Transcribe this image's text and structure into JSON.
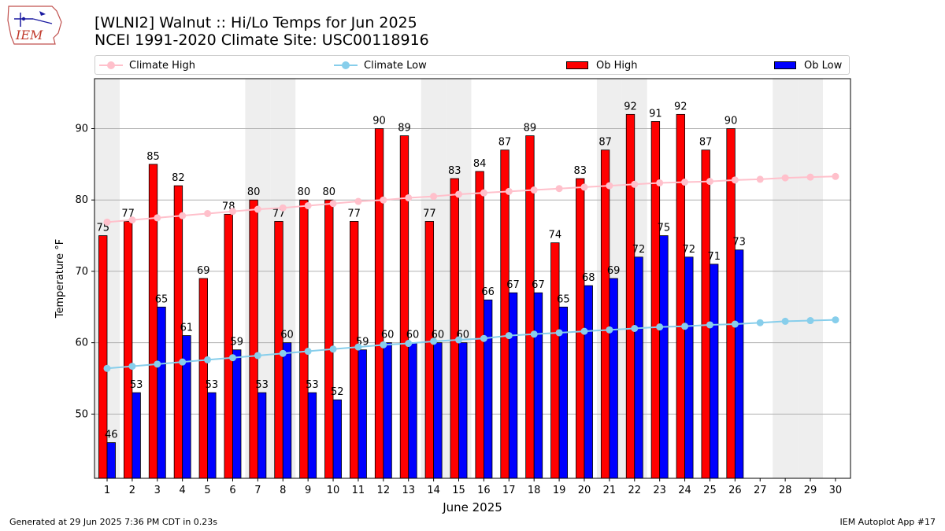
{
  "title_line1": "[WLNI2] Walnut :: Hi/Lo Temps for Jun 2025",
  "title_line2": "NCEI 1991-2020 Climate Site: USC00118916",
  "footer_left": "Generated at 29 Jun 2025 7:36 PM CDT in 0.23s",
  "footer_right": "IEM Autoplot App #17",
  "logo_text": "IEM",
  "legend": {
    "climate_high": "Climate High",
    "climate_low": "Climate Low",
    "ob_high": "Ob High",
    "ob_low": "Ob Low"
  },
  "colors": {
    "ob_high": "#ff0000",
    "ob_low": "#0000ff",
    "climate_high": "#ffc0cb",
    "climate_low": "#87ceeb",
    "weekend_shade": "#eeeeee",
    "grid": "#b0b0b0"
  },
  "chart_data": {
    "type": "bar",
    "xlabel": "June 2025",
    "ylabel": "Temperature °F",
    "ylim": [
      41,
      97
    ],
    "yticks": [
      50,
      60,
      70,
      80,
      90
    ],
    "grid": "horizontal",
    "legend_placement": "top",
    "categories": [
      "1",
      "2",
      "3",
      "4",
      "5",
      "6",
      "7",
      "8",
      "9",
      "10",
      "11",
      "12",
      "13",
      "14",
      "15",
      "16",
      "17",
      "18",
      "19",
      "20",
      "21",
      "22",
      "23",
      "24",
      "25",
      "26",
      "27",
      "28",
      "29",
      "30"
    ],
    "weekend_days": [
      1,
      7,
      8,
      14,
      15,
      21,
      22,
      28,
      29
    ],
    "series": [
      {
        "name": "Ob High",
        "kind": "bar",
        "values": [
          75,
          77,
          85,
          82,
          69,
          78,
          80,
          77,
          80,
          80,
          77,
          90,
          89,
          77,
          83,
          84,
          87,
          89,
          74,
          83,
          87,
          92,
          91,
          92,
          87,
          90,
          null,
          null,
          null,
          null
        ]
      },
      {
        "name": "Ob Low",
        "kind": "bar",
        "values": [
          46,
          53,
          65,
          61,
          53,
          59,
          53,
          60,
          53,
          52,
          59,
          60,
          60,
          60,
          60,
          66,
          67,
          67,
          65,
          68,
          69,
          72,
          75,
          72,
          71,
          73,
          null,
          null,
          null,
          null
        ]
      },
      {
        "name": "Climate High",
        "kind": "line",
        "values": [
          76.9,
          77.2,
          77.5,
          77.8,
          78.1,
          78.4,
          78.7,
          78.9,
          79.2,
          79.5,
          79.8,
          80.0,
          80.3,
          80.5,
          80.8,
          81.0,
          81.2,
          81.4,
          81.6,
          81.8,
          82.0,
          82.2,
          82.4,
          82.5,
          82.6,
          82.8,
          82.9,
          83.1,
          83.2,
          83.3
        ]
      },
      {
        "name": "Climate Low",
        "kind": "line",
        "values": [
          56.4,
          56.7,
          57.0,
          57.3,
          57.6,
          57.9,
          58.2,
          58.5,
          58.8,
          59.1,
          59.4,
          59.7,
          59.9,
          60.2,
          60.4,
          60.6,
          61.0,
          61.2,
          61.4,
          61.6,
          61.8,
          62.0,
          62.2,
          62.3,
          62.5,
          62.6,
          62.8,
          63.0,
          63.1,
          63.2
        ]
      }
    ]
  }
}
